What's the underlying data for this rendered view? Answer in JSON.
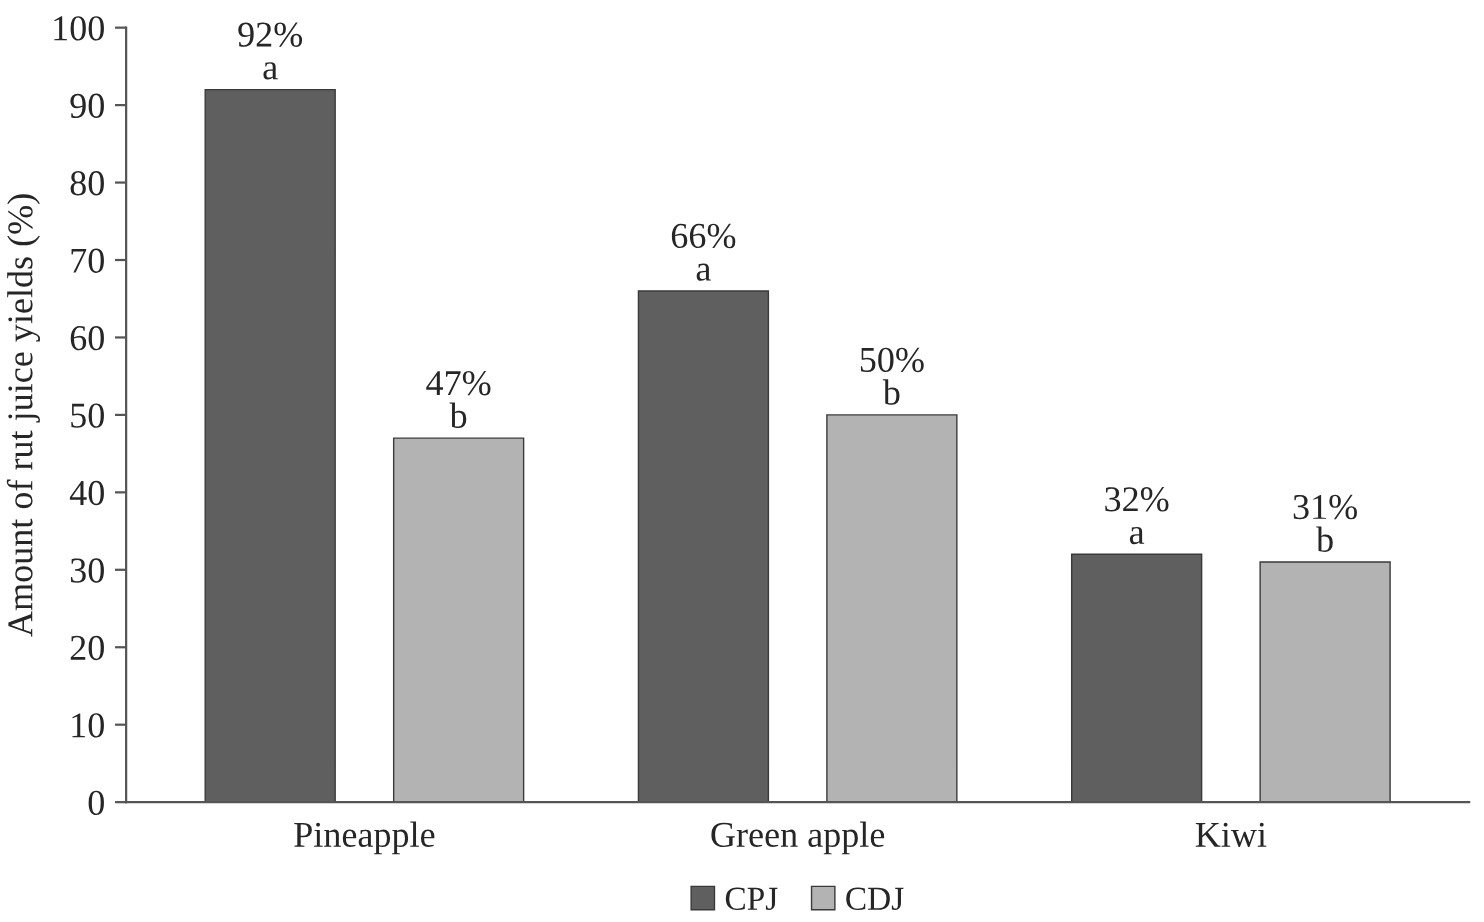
{
  "chart_data": {
    "type": "bar",
    "ylabel": "Amount of rut juice yields (%)",
    "categories": [
      "Pineapple",
      "Green apple",
      "Kiwi"
    ],
    "series": [
      {
        "name": "CPJ",
        "color": "#5f5f5f",
        "values": [
          92,
          66,
          32
        ],
        "value_labels": [
          "92%\na",
          "66%\na",
          "32%\na"
        ]
      },
      {
        "name": "CDJ",
        "color": "#b3b3b3",
        "values": [
          47,
          50,
          31
        ],
        "value_labels": [
          "47%\nb",
          "50%\nb",
          "31%\nb"
        ]
      }
    ],
    "ylim": [
      0,
      100
    ],
    "yticks": [
      0,
      10,
      20,
      30,
      40,
      50,
      60,
      70,
      80,
      90,
      100
    ],
    "grid": false,
    "legend": "bottom"
  }
}
